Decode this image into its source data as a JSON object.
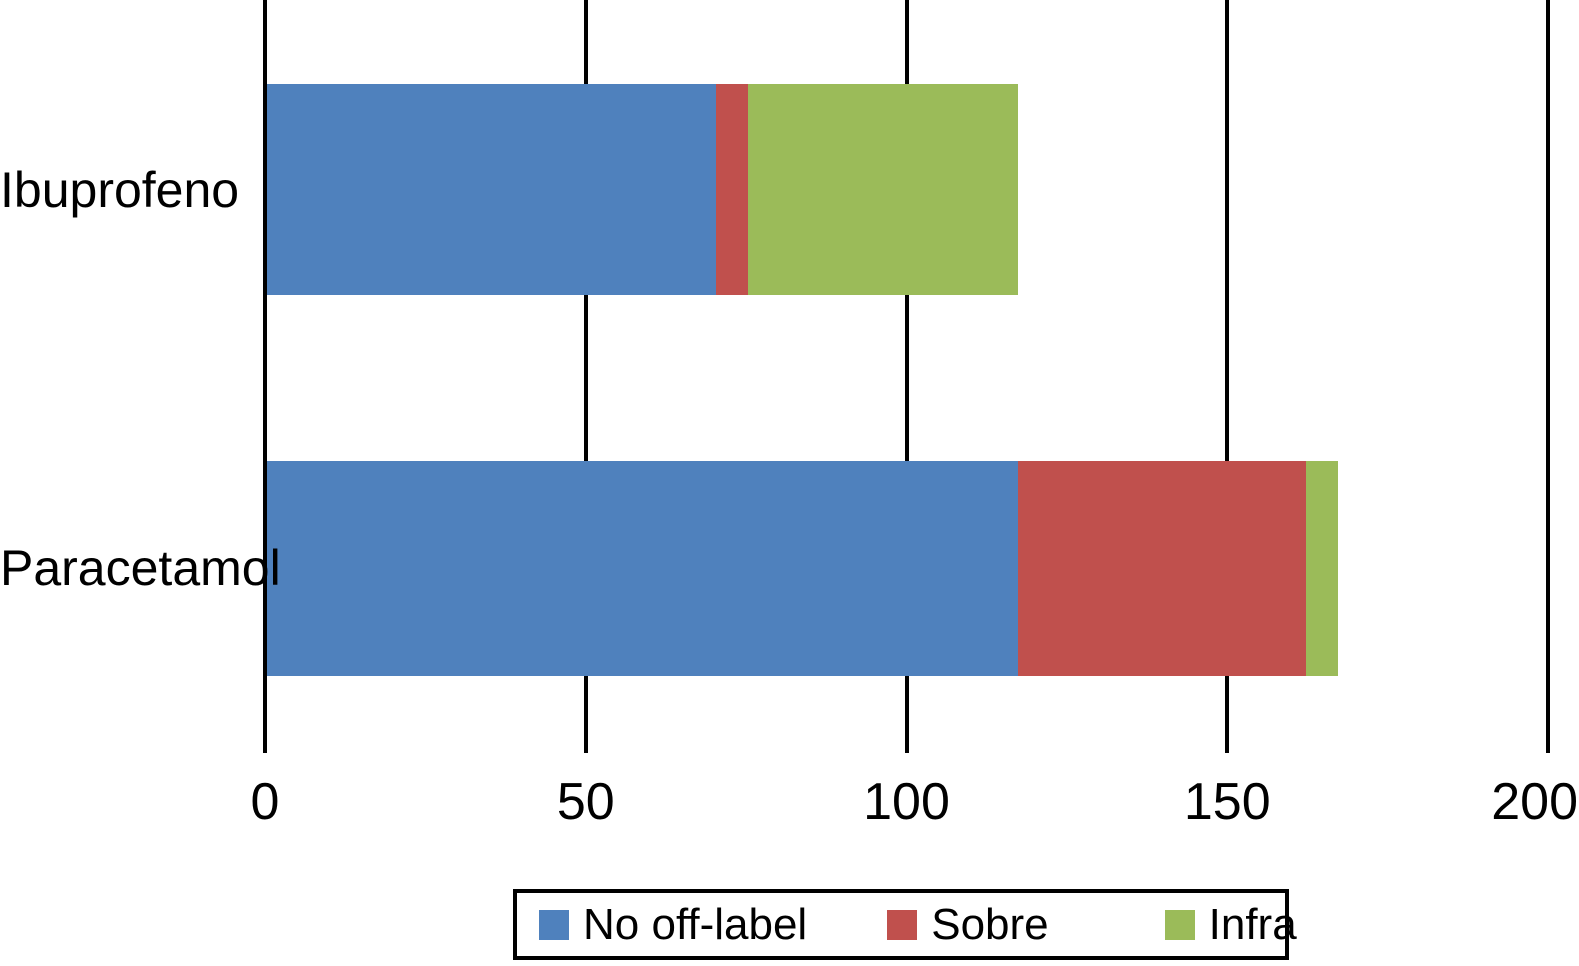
{
  "chart_data": {
    "type": "bar",
    "orientation": "horizontal",
    "stacked": true,
    "title": "",
    "xlabel": "",
    "ylabel": "",
    "categories": [
      "Ibuprofeno",
      "Paracetamol"
    ],
    "series": [
      {
        "name": "No off-label",
        "color": "#4f81bd",
        "values": [
          70,
          117
        ]
      },
      {
        "name": "Sobre",
        "color": "#c0504d",
        "values": [
          5,
          45
        ]
      },
      {
        "name": "Infra",
        "color": "#9bbb59",
        "values": [
          42,
          5
        ]
      }
    ],
    "totals": [
      117,
      167
    ],
    "x_ticks": [
      "0",
      "50",
      "100",
      "150",
      "200"
    ],
    "x_tick_values": [
      0,
      50,
      100,
      150,
      200
    ],
    "xlim": [
      0,
      200
    ],
    "grid": "vertical-black-lines",
    "gridline_color": "#000000",
    "legend_position": "bottom",
    "legend_border": true,
    "background_color": "#ffffff",
    "text_color": "#000000"
  }
}
